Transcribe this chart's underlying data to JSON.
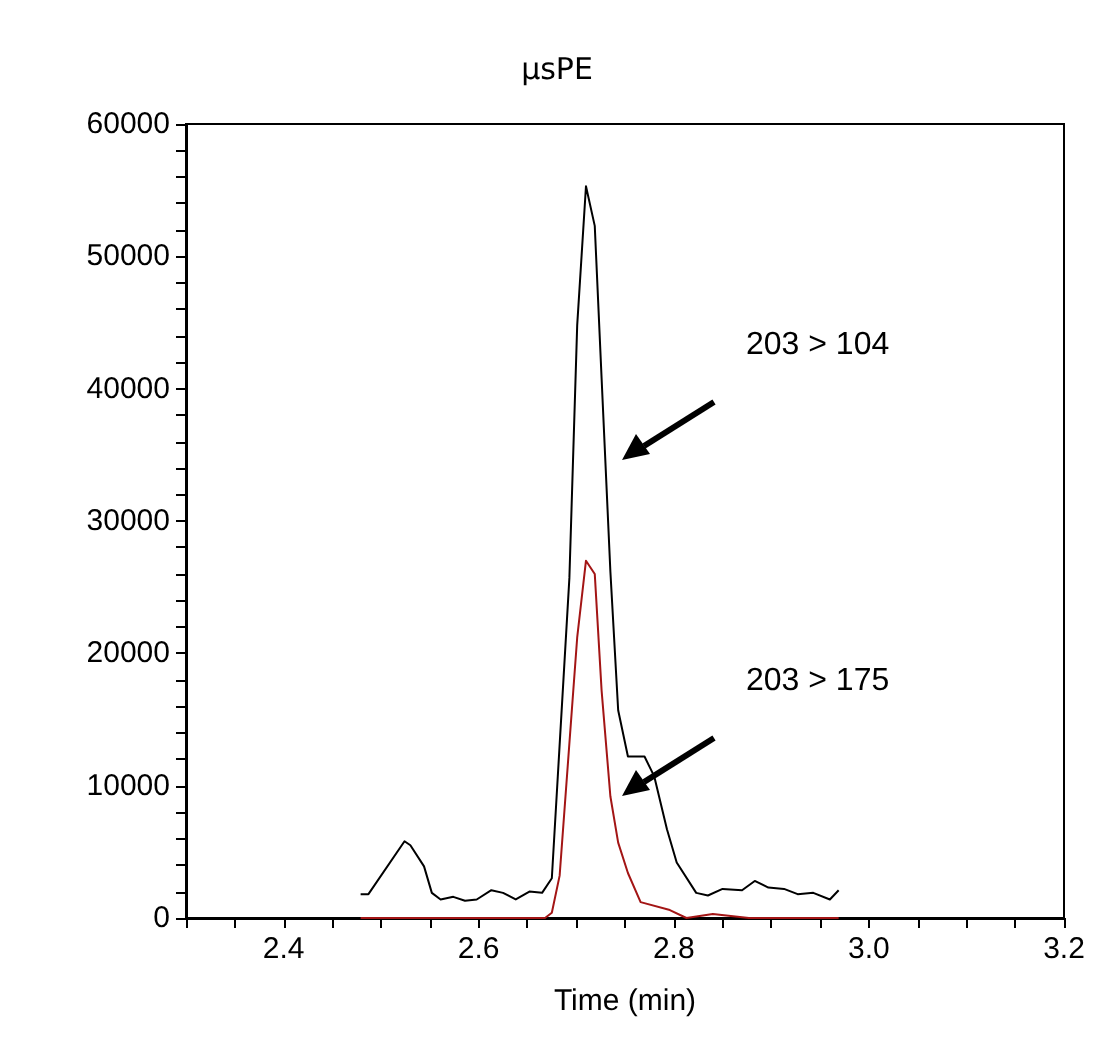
{
  "chart_data": {
    "type": "line",
    "title": "µsPE",
    "xlabel": "Time (min)",
    "xlim": [
      2.3,
      3.2
    ],
    "xticks": [
      {
        "value": 2.3,
        "label": null
      },
      {
        "value": 2.35,
        "label": null
      },
      2.4,
      {
        "value": 2.45,
        "label": null
      },
      {
        "value": 2.5,
        "label": null
      },
      {
        "value": 2.55,
        "label": null
      },
      2.6,
      {
        "value": 2.65,
        "label": null
      },
      {
        "value": 2.7,
        "label": null
      },
      {
        "value": 2.75,
        "label": null
      },
      2.8,
      {
        "value": 2.85,
        "label": null
      },
      {
        "value": 2.9,
        "label": null
      },
      {
        "value": 2.95,
        "label": null
      },
      {
        "value": 3.0,
        "label": "3.0"
      },
      {
        "value": 3.05,
        "label": null
      },
      {
        "value": 3.1,
        "label": null
      },
      {
        "value": 3.15,
        "label": null
      },
      3.2
    ],
    "ylim": [
      0,
      60000
    ],
    "yticks": [
      0,
      {
        "value": 2000,
        "label": null
      },
      {
        "value": 4000,
        "label": null
      },
      {
        "value": 6000,
        "label": null
      },
      {
        "value": 8000,
        "label": null
      },
      10000,
      {
        "value": 12000,
        "label": null
      },
      {
        "value": 14000,
        "label": null
      },
      {
        "value": 16000,
        "label": null
      },
      {
        "value": 18000,
        "label": null
      },
      20000,
      {
        "value": 22000,
        "label": null
      },
      {
        "value": 24000,
        "label": null
      },
      {
        "value": 26000,
        "label": null
      },
      {
        "value": 28000,
        "label": null
      },
      30000,
      {
        "value": 32000,
        "label": null
      },
      {
        "value": 34000,
        "label": null
      },
      {
        "value": 36000,
        "label": null
      },
      {
        "value": 38000,
        "label": null
      },
      40000,
      {
        "value": 42000,
        "label": null
      },
      {
        "value": 44000,
        "label": null
      },
      {
        "value": 46000,
        "label": null
      },
      {
        "value": 48000,
        "label": null
      },
      50000,
      {
        "value": 52000,
        "label": null
      },
      {
        "value": 54000,
        "label": null
      },
      {
        "value": 56000,
        "label": null
      },
      {
        "value": 58000,
        "label": null
      },
      60000
    ],
    "grid": false,
    "marker": "none",
    "line_style": "solid",
    "series": [
      {
        "color": "#000000",
        "x": [
          2.479,
          2.487,
          2.524,
          2.53,
          2.544,
          2.552,
          2.561,
          2.574,
          2.586,
          2.598,
          2.613,
          2.625,
          2.638,
          2.652,
          2.665,
          2.675,
          2.693,
          2.701,
          2.71,
          2.719,
          2.726,
          2.735,
          2.743,
          2.753,
          2.77,
          2.78,
          2.793,
          2.803,
          2.823,
          2.835,
          2.85,
          2.87,
          2.883,
          2.897,
          2.913,
          2.927,
          2.943,
          2.96,
          2.969
        ],
        "values": [
          1800,
          1800,
          5800,
          5500,
          3900,
          1900,
          1400,
          1600,
          1300,
          1400,
          2100,
          1900,
          1400,
          2000,
          1900,
          3000,
          25700,
          44800,
          55300,
          52300,
          40800,
          26200,
          15700,
          12200,
          12200,
          10700,
          6700,
          4200,
          1900,
          1700,
          2200,
          2100,
          2800,
          2300,
          2200,
          1800,
          1900,
          1400,
          2100
        ]
      },
      {
        "color": "#a31515",
        "x": [
          2.479,
          2.55,
          2.6,
          2.668,
          2.675,
          2.683,
          2.701,
          2.71,
          2.719,
          2.726,
          2.735,
          2.743,
          2.753,
          2.766,
          2.796,
          2.813,
          2.84,
          2.877,
          2.969
        ],
        "values": [
          0,
          0,
          0,
          0,
          400,
          3200,
          21200,
          27000,
          26000,
          17200,
          9200,
          5700,
          3400,
          1200,
          600,
          0,
          300,
          0,
          0
        ]
      }
    ],
    "annotations": [
      "203 > 104",
      "203 > 175"
    ]
  }
}
